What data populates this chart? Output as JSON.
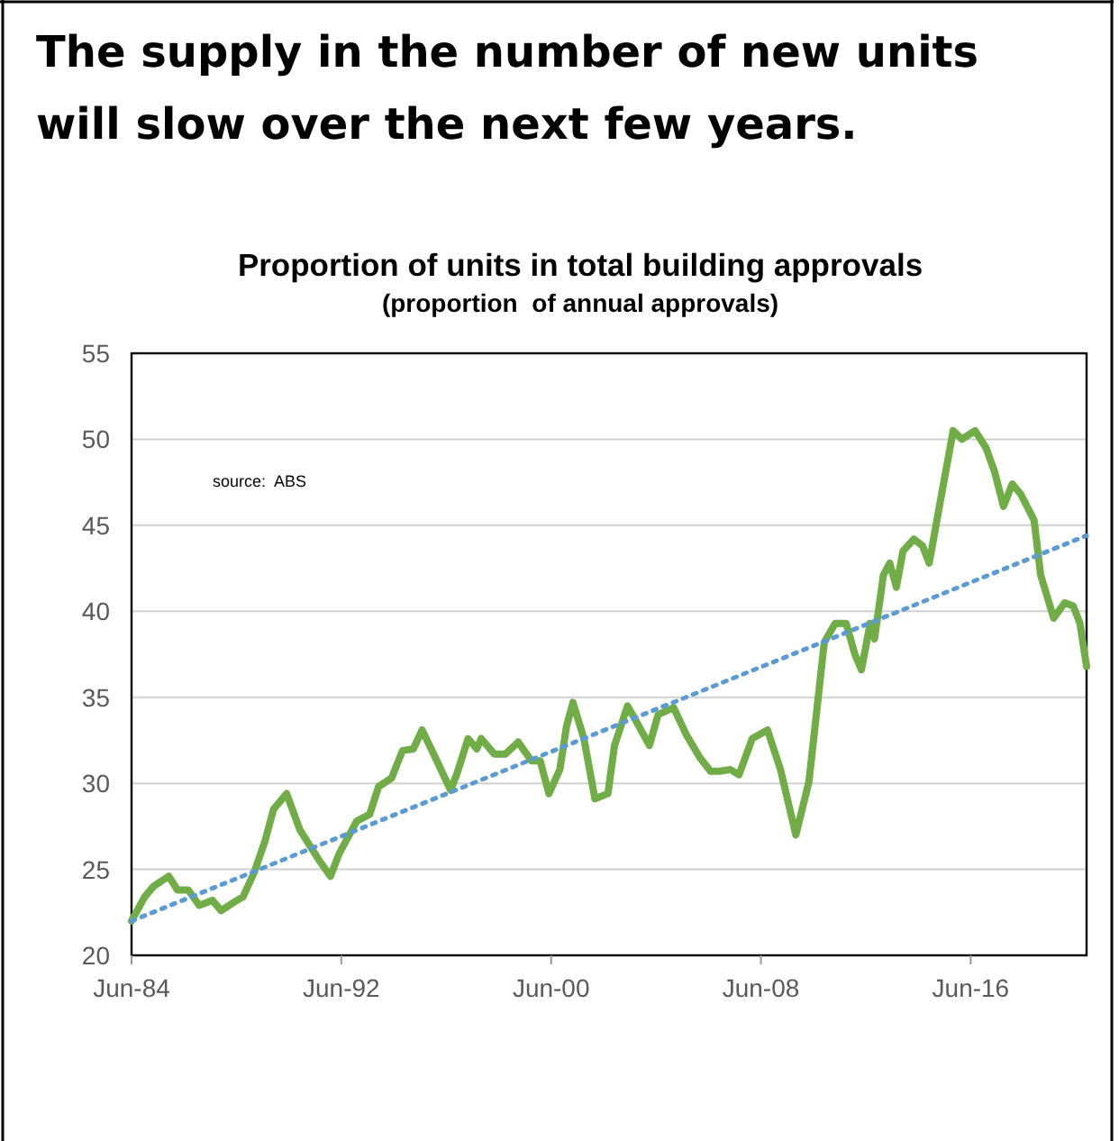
{
  "chart_data": {
    "type": "line",
    "title": "Proportion of units in total building approvals",
    "subtitle": "(proportion  of annual approvals)",
    "annotations": [
      "The supply in the number of new units will slow over the next few years.",
      "source:  ABS"
    ],
    "xlim": [
      "1984-06",
      "2020-11"
    ],
    "xticks": [
      {
        "value": "1984-06",
        "label": "Jun-84"
      },
      {
        "value": "1992-06",
        "label": "Jun-92"
      },
      {
        "value": "2000-06",
        "label": "Jun-00"
      },
      {
        "value": "2008-06",
        "label": "Jun-08"
      },
      {
        "value": "2016-06",
        "label": "Jun-16"
      }
    ],
    "ylim": [
      20,
      55
    ],
    "yticks": [
      20,
      25,
      30,
      35,
      40,
      45,
      50,
      55
    ],
    "grid": "y",
    "series": [
      {
        "color": "#70ad47",
        "line_style": "solid",
        "x": [
          "1984-06",
          "1984-12",
          "1985-04",
          "1985-11",
          "1986-03",
          "1986-08",
          "1987-01",
          "1987-07",
          "1987-11",
          "1988-05",
          "1988-09",
          "1989-02",
          "1989-07",
          "1989-11",
          "1990-05",
          "1990-11",
          "1991-08",
          "1992-01",
          "1992-05",
          "1993-01",
          "1993-07",
          "1993-11",
          "1994-05",
          "1994-10",
          "1995-03",
          "1995-07",
          "1996-01",
          "1996-08",
          "1996-11",
          "1997-04",
          "1997-08",
          "1997-10",
          "1998-04",
          "1998-09",
          "1999-03",
          "1999-09",
          "2000-01",
          "2000-05",
          "2000-10",
          "2001-01",
          "2001-04",
          "2001-09",
          "2002-02",
          "2002-08",
          "2002-11",
          "2003-05",
          "2003-09",
          "2004-03",
          "2004-07",
          "2005-02",
          "2005-08",
          "2006-02",
          "2006-07",
          "2006-11",
          "2007-04",
          "2007-08",
          "2008-02",
          "2008-09",
          "2009-03",
          "2009-10",
          "2010-04",
          "2010-11",
          "2011-04",
          "2011-09",
          "2012-01",
          "2012-04",
          "2012-08",
          "2012-10",
          "2013-02",
          "2013-05",
          "2013-08",
          "2013-11",
          "2014-04",
          "2014-08",
          "2014-11",
          "2015-04",
          "2015-10",
          "2016-02",
          "2016-08",
          "2017-01",
          "2017-05",
          "2017-09",
          "2018-01",
          "2018-05",
          "2018-11",
          "2019-02",
          "2019-08",
          "2020-01",
          "2020-05",
          "2020-08",
          "2020-11"
        ],
        "values": [
          22.0,
          23.4,
          24.0,
          24.6,
          23.8,
          23.8,
          22.9,
          23.2,
          22.6,
          23.1,
          23.4,
          24.8,
          26.6,
          28.5,
          29.4,
          27.3,
          25.5,
          24.6,
          25.9,
          27.8,
          28.2,
          29.8,
          30.3,
          31.9,
          32.0,
          33.1,
          31.5,
          29.6,
          30.6,
          32.6,
          32.0,
          32.6,
          31.7,
          31.7,
          32.4,
          31.3,
          31.3,
          29.4,
          30.8,
          33.3,
          34.7,
          32.6,
          29.1,
          29.4,
          32.2,
          34.5,
          33.6,
          32.2,
          34.0,
          34.4,
          32.8,
          31.5,
          30.7,
          30.7,
          30.8,
          30.5,
          32.6,
          33.1,
          30.8,
          27.0,
          30.1,
          38.2,
          39.3,
          39.3,
          37.5,
          36.6,
          39.3,
          38.4,
          42.1,
          42.8,
          41.4,
          43.5,
          44.2,
          43.8,
          42.8,
          46.3,
          50.5,
          50.0,
          50.5,
          49.5,
          48.1,
          46.1,
          47.4,
          46.8,
          45.3,
          42.1,
          39.6,
          40.5,
          40.3,
          39.3,
          36.8
        ]
      },
      {
        "color": "#5b9bd5",
        "line_style": "dotted",
        "x": [
          "1984-06",
          "2020-11"
        ],
        "values": [
          22.0,
          44.4
        ]
      }
    ]
  }
}
